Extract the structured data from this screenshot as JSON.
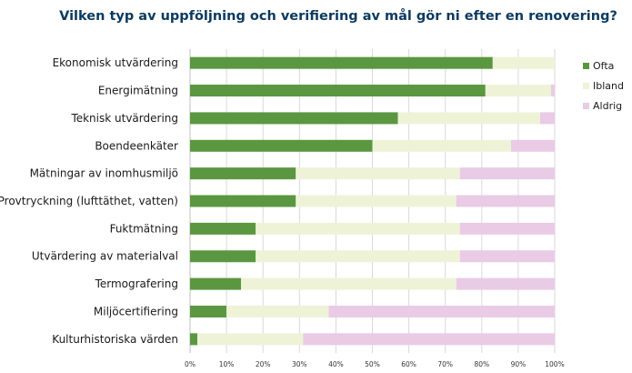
{
  "chart_data": {
    "type": "bar",
    "orientation": "horizontal",
    "stacked": true,
    "title": "Vilken typ av uppföljning och verifiering av mål gör ni efter en renovering?",
    "categories": [
      "Ekonomisk utvärdering",
      "Energimätning",
      "Teknisk utvärdering",
      "Boendeenkäter",
      "Mätningar av inomhusmiljö",
      "Provtryckning (lufttäthet, vatten)",
      "Fuktmätning",
      "Utvärdering av materialval",
      "Termografering",
      "Miljöcertifiering",
      "Kulturhistoriska värden"
    ],
    "series": [
      {
        "name": "Ofta",
        "color": "#5b9740",
        "values": [
          83,
          81,
          57,
          50,
          29,
          29,
          18,
          18,
          14,
          10,
          2
        ]
      },
      {
        "name": "Ibland",
        "color": "#eef3d8",
        "values": [
          17,
          18,
          39,
          38,
          45,
          44,
          56,
          56,
          59,
          28,
          29
        ]
      },
      {
        "name": "Aldrig",
        "color": "#e9cbe6",
        "values": [
          0,
          1,
          4,
          12,
          26,
          27,
          26,
          26,
          27,
          62,
          69
        ]
      }
    ],
    "xlim": [
      0,
      100
    ],
    "xticks": [
      "0%",
      "10%",
      "20%",
      "30%",
      "40%",
      "50%",
      "60%",
      "70%",
      "80%",
      "90%",
      "100%"
    ],
    "legend_position": "right"
  }
}
